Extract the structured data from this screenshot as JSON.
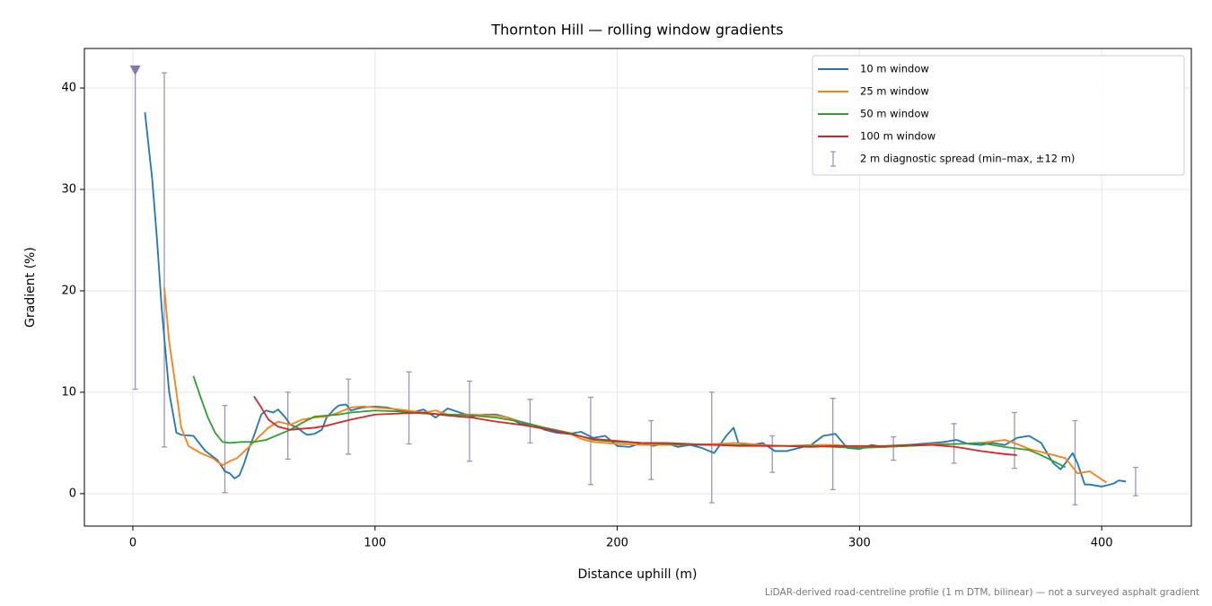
{
  "chart_data": {
    "type": "line",
    "title": "Thornton Hill — rolling window gradients",
    "xlabel": "Distance uphill (m)",
    "ylabel": "Gradient (%)",
    "footnote": "LiDAR-derived road-centreline profile (1 m DTM, bilinear) — not a surveyed asphalt gradient",
    "xlim": [
      -20,
      437
    ],
    "ylim": [
      -3.2,
      43.9
    ],
    "xticks": [
      0,
      100,
      200,
      300,
      400
    ],
    "yticks": [
      0,
      10,
      20,
      30,
      40
    ],
    "grid": true,
    "legend_loc": "upper right",
    "series": [
      {
        "name": "10 m window",
        "color": "#1f77b4",
        "x": [
          5,
          8,
          10,
          12,
          15,
          18,
          20,
          25,
          28,
          30,
          35,
          38,
          40,
          42,
          44,
          46,
          48,
          50,
          53,
          55,
          58,
          60,
          63,
          65,
          68,
          70,
          72,
          75,
          78,
          80,
          83,
          85,
          88,
          90,
          93,
          95,
          100,
          105,
          110,
          115,
          120,
          125,
          130,
          135,
          140,
          145,
          150,
          155,
          160,
          165,
          170,
          175,
          180,
          185,
          190,
          195,
          200,
          205,
          210,
          215,
          220,
          225,
          230,
          235,
          240,
          245,
          248,
          250,
          255,
          260,
          265,
          270,
          275,
          280,
          285,
          290,
          295,
          300,
          305,
          310,
          315,
          320,
          325,
          330,
          335,
          340,
          345,
          350,
          355,
          360,
          365,
          370,
          375,
          380,
          383,
          385,
          388,
          390,
          393,
          395,
          400,
          405,
          407,
          410
        ],
        "values": [
          37.6,
          31,
          25,
          18,
          10,
          6,
          5.8,
          5.7,
          4.8,
          4.2,
          3.3,
          2.2,
          2,
          1.5,
          1.8,
          3,
          4.5,
          5.7,
          7.8,
          8.2,
          8,
          8.3,
          7.5,
          6.8,
          6.5,
          6.1,
          5.8,
          5.9,
          6.3,
          7.5,
          8.3,
          8.7,
          8.8,
          8.2,
          8.4,
          8.5,
          8.6,
          8.5,
          8.2,
          8.0,
          8.3,
          7.5,
          8.4,
          8.0,
          7.6,
          7.8,
          7.8,
          7.5,
          6.9,
          6.8,
          6.3,
          6.0,
          5.9,
          6.1,
          5.5,
          5.7,
          4.7,
          4.6,
          5.0,
          4.7,
          5.0,
          4.6,
          4.8,
          4.5,
          4.0,
          5.7,
          6.5,
          5.0,
          4.8,
          5.0,
          4.2,
          4.2,
          4.5,
          4.8,
          5.7,
          5.9,
          4.5,
          4.4,
          4.8,
          4.6,
          4.7,
          4.8,
          4.9,
          5.0,
          5.1,
          5.3,
          4.9,
          4.8,
          5.0,
          4.8,
          5.5,
          5.7,
          5.0,
          3.0,
          2.4,
          3.0,
          4.0,
          3.0,
          0.9,
          0.9,
          0.7,
          1.0,
          1.3,
          1.2
        ]
      },
      {
        "name": "25 m window",
        "color": "#ff7f0e",
        "x": [
          13,
          15,
          18,
          20,
          23,
          28,
          33,
          37,
          40,
          43,
          48,
          52,
          56,
          60,
          65,
          70,
          75,
          80,
          85,
          90,
          95,
          100,
          110,
          120,
          125,
          130,
          140,
          150,
          155,
          160,
          170,
          180,
          185,
          190,
          200,
          210,
          220,
          230,
          240,
          250,
          260,
          270,
          280,
          290,
          300,
          310,
          320,
          330,
          340,
          350,
          360,
          365,
          370,
          380,
          385,
          390,
          395,
          400,
          402
        ],
        "values": [
          20.3,
          15,
          10,
          6.5,
          4.7,
          4.0,
          3.5,
          2.8,
          3.2,
          3.5,
          4.6,
          5.6,
          6.5,
          7.1,
          6.8,
          7.3,
          7.5,
          7.6,
          8.0,
          8.5,
          8.6,
          8.5,
          8.3,
          8.0,
          8.2,
          7.8,
          7.8,
          7.7,
          7.5,
          7.1,
          6.5,
          6.0,
          5.4,
          5.1,
          4.9,
          4.8,
          4.8,
          4.8,
          4.9,
          5.0,
          4.8,
          4.7,
          4.8,
          4.8,
          4.6,
          4.6,
          4.7,
          4.9,
          4.9,
          5.0,
          5.3,
          4.9,
          4.4,
          3.8,
          3.5,
          2.0,
          2.2,
          1.4,
          1.1
        ]
      },
      {
        "name": "50 m window",
        "color": "#2ca02c",
        "x": [
          25,
          28,
          31,
          34,
          37,
          40,
          45,
          50,
          55,
          60,
          65,
          70,
          75,
          80,
          85,
          90,
          100,
          110,
          120,
          130,
          140,
          150,
          160,
          170,
          180,
          190,
          200,
          210,
          220,
          230,
          240,
          250,
          260,
          270,
          280,
          290,
          300,
          310,
          320,
          330,
          340,
          350,
          360,
          370,
          375,
          380,
          385
        ],
        "values": [
          11.6,
          9.5,
          7.5,
          6,
          5.1,
          5.0,
          5.1,
          5.1,
          5.3,
          5.8,
          6.3,
          7.0,
          7.6,
          7.7,
          7.8,
          8.0,
          8.2,
          8.1,
          7.9,
          7.8,
          7.7,
          7.5,
          7.1,
          6.5,
          6.0,
          5.3,
          5.1,
          5.0,
          4.9,
          4.8,
          4.8,
          4.8,
          4.7,
          4.7,
          4.7,
          4.6,
          4.5,
          4.6,
          4.7,
          4.8,
          4.9,
          5.0,
          4.6,
          4.3,
          3.8,
          3.2,
          2.6
        ]
      },
      {
        "name": "100 m window",
        "color": "#d62728",
        "x": [
          50,
          53,
          56,
          60,
          65,
          70,
          75,
          80,
          90,
          100,
          110,
          120,
          130,
          140,
          150,
          160,
          170,
          180,
          190,
          200,
          210,
          220,
          230,
          240,
          250,
          260,
          270,
          280,
          290,
          300,
          310,
          320,
          330,
          340,
          350,
          360,
          365
        ],
        "values": [
          9.6,
          8.5,
          7.3,
          6.6,
          6.3,
          6.4,
          6.5,
          6.7,
          7.3,
          7.8,
          7.9,
          8.0,
          7.7,
          7.5,
          7.1,
          6.8,
          6.4,
          5.9,
          5.4,
          5.2,
          5.0,
          5.0,
          4.9,
          4.8,
          4.7,
          4.7,
          4.7,
          4.6,
          4.7,
          4.7,
          4.7,
          4.8,
          4.8,
          4.6,
          4.2,
          3.9,
          3.8
        ]
      }
    ],
    "errorbars": {
      "name": "2 m diagnostic spread (min–max, ±12 m)",
      "color": "#9a94bb",
      "x": [
        1,
        13,
        38,
        64,
        89,
        114,
        139,
        164,
        189,
        214,
        239,
        264,
        289,
        314,
        339,
        364,
        389,
        414
      ],
      "low": [
        10.3,
        4.6,
        0.1,
        3.4,
        3.9,
        4.9,
        3.2,
        5.0,
        0.9,
        1.4,
        -0.9,
        2.1,
        0.4,
        3.3,
        3.0,
        2.5,
        -1.1,
        -0.2
      ],
      "high": [
        41.7,
        41.5,
        8.7,
        10.0,
        11.3,
        12.0,
        11.1,
        9.3,
        9.5,
        7.2,
        10.0,
        5.7,
        9.4,
        5.6,
        6.9,
        8.0,
        7.2,
        2.6
      ]
    },
    "marker": {
      "x": 1,
      "y": 41.7,
      "color": "#8877aa"
    }
  }
}
